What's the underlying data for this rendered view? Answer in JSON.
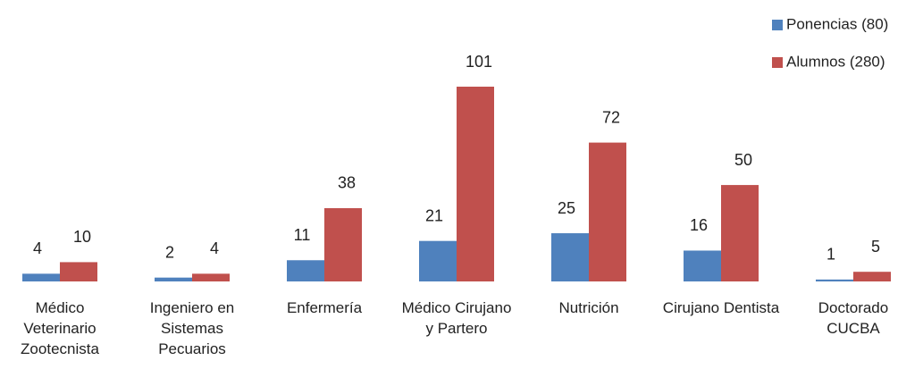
{
  "chart_data": {
    "type": "bar",
    "categories": [
      "Médico Veterinario Zootecnista",
      "Ingeniero en Sistemas Pecuarios",
      "Enfermería",
      "Médico Cirujano y Partero",
      "Nutrición",
      "Cirujano Dentista",
      "Doctorado CUCBA"
    ],
    "series": [
      {
        "name": "Ponencias (80)",
        "color": "#4f81bd",
        "values": [
          4,
          2,
          11,
          21,
          25,
          16,
          1
        ]
      },
      {
        "name": "Alumnos (280)",
        "color": "#c0504d",
        "values": [
          10,
          4,
          38,
          101,
          72,
          50,
          5
        ]
      }
    ],
    "legend": "top-right"
  }
}
